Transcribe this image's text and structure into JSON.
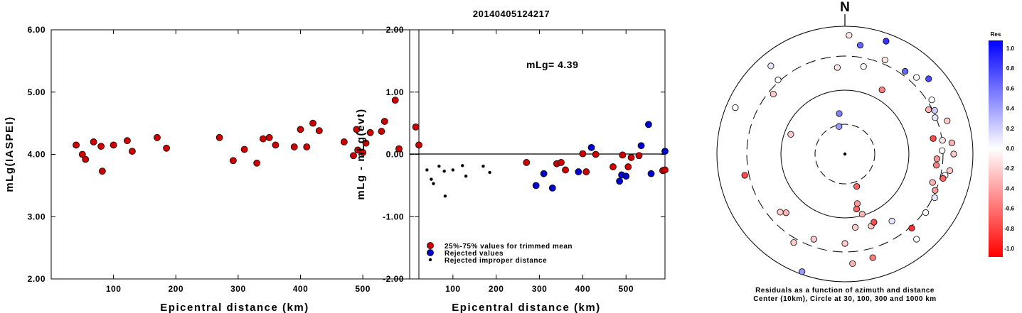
{
  "title": "20140405124217",
  "colors": {
    "red": "#cc0000",
    "blue": "#0000cc",
    "black": "#000000"
  },
  "chart_data": [
    {
      "type": "scatter",
      "xlabel": "Epicentral distance (km)",
      "ylabel": "mLg(IASPEI)",
      "xlim": [
        0,
        590
      ],
      "ylim": [
        2.0,
        6.0
      ],
      "x_ticks": [
        100,
        200,
        300,
        400,
        500
      ],
      "x_tick_labels": [
        "100",
        "200",
        "300",
        "400",
        "500"
      ],
      "y_ticks": [
        2.0,
        3.0,
        4.0,
        5.0,
        6.0
      ],
      "y_tick_labels": [
        "2.00",
        "3.00",
        "4.00",
        "5.00",
        "6.00"
      ],
      "points": [
        [
          40,
          4.15
        ],
        [
          50,
          4.0
        ],
        [
          55,
          3.92
        ],
        [
          68,
          4.2
        ],
        [
          80,
          4.13
        ],
        [
          82,
          3.73
        ],
        [
          100,
          4.15
        ],
        [
          122,
          4.22
        ],
        [
          130,
          4.05
        ],
        [
          170,
          4.27
        ],
        [
          185,
          4.1
        ],
        [
          270,
          4.27
        ],
        [
          292,
          3.9
        ],
        [
          310,
          4.08
        ],
        [
          330,
          3.86
        ],
        [
          340,
          4.25
        ],
        [
          350,
          4.27
        ],
        [
          360,
          4.15
        ],
        [
          390,
          4.12
        ],
        [
          400,
          4.4
        ],
        [
          410,
          4.12
        ],
        [
          420,
          4.5
        ],
        [
          430,
          4.38
        ],
        [
          470,
          4.2
        ],
        [
          485,
          3.98
        ],
        [
          490,
          4.4
        ],
        [
          492,
          4.07
        ],
        [
          500,
          4.03
        ],
        [
          505,
          4.18
        ],
        [
          512,
          4.35
        ],
        [
          530,
          4.37
        ],
        [
          535,
          4.53
        ],
        [
          552,
          4.87
        ],
        [
          558,
          4.09
        ],
        [
          585,
          4.44
        ],
        [
          590,
          4.15
        ],
        [
          598,
          4.16
        ]
      ]
    },
    {
      "type": "scatter",
      "xlabel": "Epicentral distance (km)",
      "ylabel": "mLg - mLg(evt)",
      "annotation": "mLg= 4.39",
      "xlim": [
        0,
        590
      ],
      "ylim": [
        -2.0,
        2.0
      ],
      "x_ticks": [
        100,
        200,
        300,
        400,
        500
      ],
      "x_tick_labels": [
        "100",
        "200",
        "300",
        "400",
        "500"
      ],
      "y_ticks": [
        -2.0,
        -1.0,
        0.0,
        1.0,
        2.0
      ],
      "y_tick_labels": [
        "-2.00",
        "-1.00",
        "0.00",
        "1.00",
        "2.00"
      ],
      "legend": [
        {
          "label": "25%-75% values for trimmed mean",
          "color": "red"
        },
        {
          "label": "Rejected values",
          "color": "blue"
        },
        {
          "label": "Rejected improper distance",
          "color": "black"
        }
      ],
      "series": [
        {
          "color": "red",
          "points": [
            [
              270,
              -0.13
            ],
            [
              340,
              -0.15
            ],
            [
              350,
              -0.13
            ],
            [
              360,
              -0.25
            ],
            [
              400,
              0.01
            ],
            [
              408,
              -0.28
            ],
            [
              430,
              0.0
            ],
            [
              470,
              -0.2
            ],
            [
              492,
              -0.01
            ],
            [
              505,
              -0.2
            ],
            [
              512,
              -0.05
            ],
            [
              530,
              -0.02
            ],
            [
              585,
              -0.26
            ],
            [
              598,
              -0.25
            ]
          ]
        },
        {
          "color": "blue",
          "points": [
            [
              292,
              -0.5
            ],
            [
              310,
              -0.31
            ],
            [
              330,
              -0.54
            ],
            [
              390,
              -0.28
            ],
            [
              420,
              0.11
            ],
            [
              485,
              -0.43
            ],
            [
              490,
              -0.33
            ],
            [
              500,
              -0.35
            ],
            [
              535,
              0.14
            ],
            [
              552,
              0.48
            ],
            [
              558,
              -0.31
            ],
            [
              590,
              0.05
            ]
          ]
        },
        {
          "color": "black",
          "points": [
            [
              40,
              -0.25
            ],
            [
              50,
              -0.4
            ],
            [
              55,
              -0.47
            ],
            [
              68,
              -0.19
            ],
            [
              80,
              -0.27
            ],
            [
              82,
              -0.67
            ],
            [
              100,
              -0.25
            ],
            [
              122,
              -0.18
            ],
            [
              130,
              -0.35
            ],
            [
              170,
              -0.19
            ],
            [
              185,
              -0.29
            ]
          ]
        }
      ]
    },
    {
      "type": "polar-scatter",
      "north_label": "N",
      "caption_line1": "Residuals as a function of azimuth and distance",
      "caption_line2": "Center (10km), Circle at 30, 100, 300 and 1000 km",
      "rings": [
        "30 km (dashed)",
        "100 km",
        "300 km (dashed)",
        "1000 km"
      ],
      "points_note": "residual values in [-1,1]; color from colorbar",
      "points": [
        [
          -12,
          0.22,
          0.4
        ],
        [
          -8,
          0.32,
          0.5
        ],
        [
          -5,
          0.68,
          -0.1
        ],
        [
          8,
          0.86,
          0.6
        ],
        [
          12,
          0.7,
          0.0
        ],
        [
          2,
          0.93,
          -0.1
        ],
        [
          20,
          0.94,
          0.8
        ],
        [
          23,
          0.8,
          -0.1
        ],
        [
          36,
          0.8,
          0.6
        ],
        [
          43,
          0.82,
          0.0
        ],
        [
          48,
          0.88,
          0.7
        ],
        [
          30,
          0.58,
          -0.5
        ],
        [
          62,
          0.74,
          -0.3
        ],
        [
          64,
          0.78,
          0.2
        ],
        [
          58,
          0.8,
          0.0
        ],
        [
          68,
          0.76,
          0.1
        ],
        [
          72,
          0.84,
          -0.2
        ],
        [
          80,
          0.7,
          -0.7
        ],
        [
          82,
          0.77,
          -0.1
        ],
        [
          84,
          0.84,
          -0.3
        ],
        [
          88,
          0.76,
          0.0
        ],
        [
          90,
          0.85,
          -0.2
        ],
        [
          93,
          0.72,
          -0.4
        ],
        [
          97,
          0.72,
          -0.5
        ],
        [
          99,
          0.83,
          -0.2
        ],
        [
          102,
          0.8,
          0.0
        ],
        [
          104,
          0.79,
          -0.6
        ],
        [
          108,
          0.72,
          -0.3
        ],
        [
          112,
          0.76,
          -0.4
        ],
        [
          116,
          0.78,
          0.1
        ],
        [
          126,
          0.78,
          0.0
        ],
        [
          160,
          0.27,
          -0.6
        ],
        [
          166,
          0.4,
          -0.4
        ],
        [
          168,
          0.44,
          -0.6
        ],
        [
          164,
          0.49,
          -0.3
        ],
        [
          160,
          0.6,
          -0.2
        ],
        [
          172,
          0.58,
          -0.2
        ],
        [
          157,
          0.58,
          -0.7
        ],
        [
          165,
          0.84,
          -0.5
        ],
        [
          176,
          0.86,
          -0.3
        ],
        [
          180,
          0.7,
          -0.2
        ],
        [
          200,
          0.71,
          -0.2
        ],
        [
          210,
          0.8,
          -0.2
        ],
        [
          225,
          0.65,
          -0.3
        ],
        [
          228,
          0.68,
          -0.2
        ],
        [
          258,
          0.8,
          -0.7
        ],
        [
          290,
          0.45,
          -0.2
        ],
        [
          293,
          0.93,
          0.0
        ],
        [
          310,
          0.73,
          -0.2
        ],
        [
          318,
          0.78,
          0.0
        ],
        [
          320,
          0.9,
          0.1
        ],
        [
          200,
          0.98,
          0.4
        ],
        [
          145,
          0.64,
          0.1
        ],
        [
          138,
          0.78,
          -0.8
        ],
        [
          140,
          0.87,
          0.0
        ]
      ]
    }
  ],
  "colorbar": {
    "title": "Res",
    "tick_labels": [
      "1.0",
      "0.8",
      "0.6",
      "0.4",
      "0.2",
      "0.0",
      "-0.2",
      "-0.4",
      "-0.6",
      "-0.8",
      "-1.0"
    ]
  }
}
